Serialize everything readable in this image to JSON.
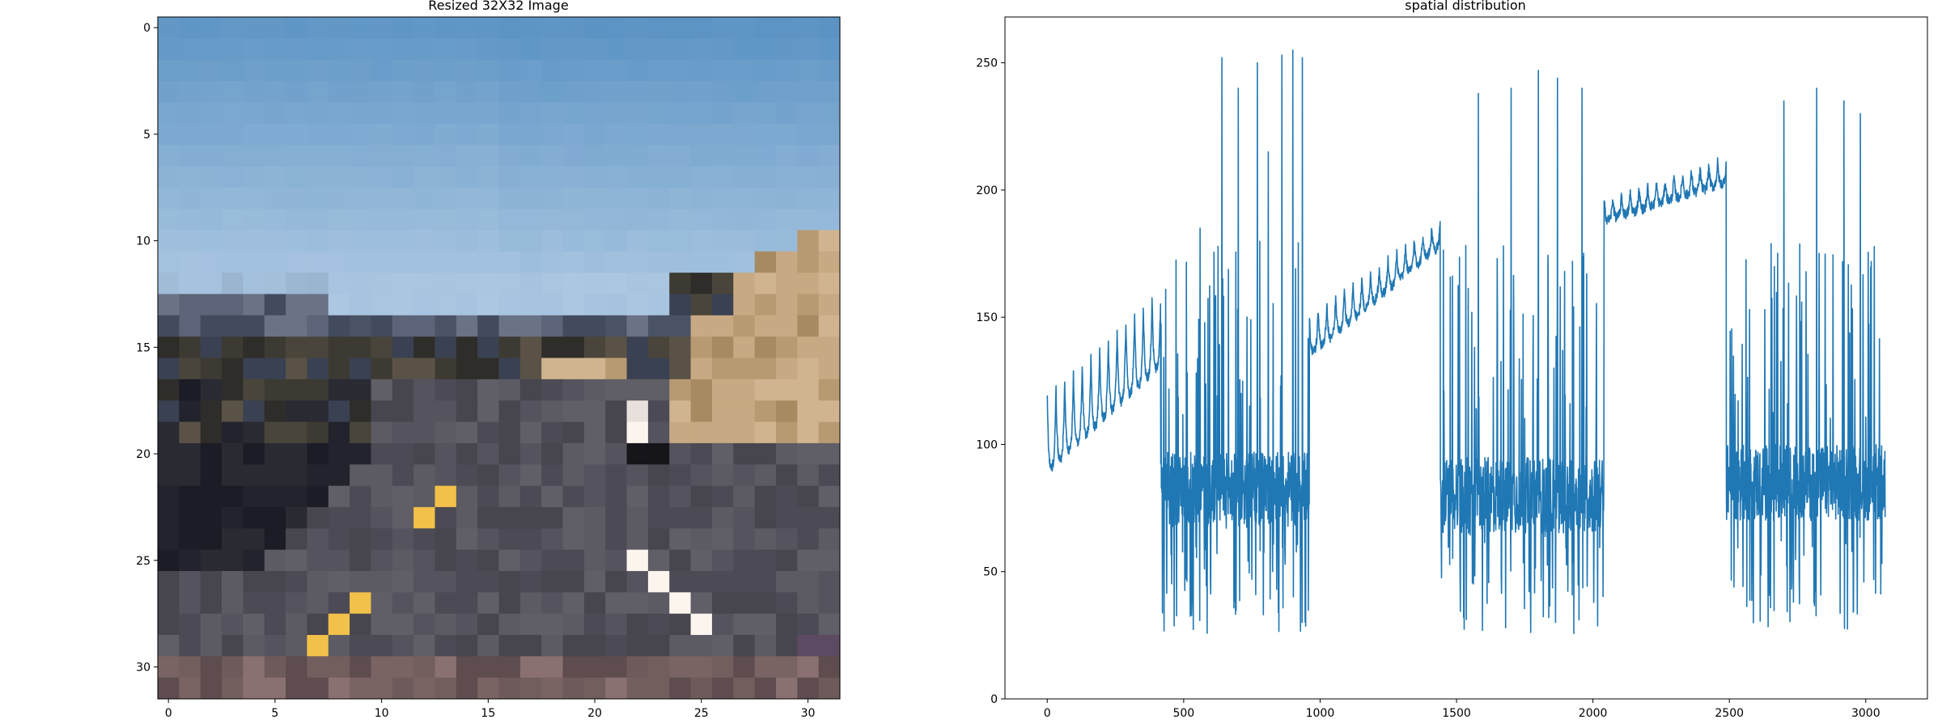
{
  "charts": [
    {
      "title": "Resized 32X32 Image",
      "chart_data": {
        "type": "heatmap",
        "title": "Resized 32X32 Image",
        "rows": 32,
        "cols": 32,
        "xlim": [
          -0.5,
          31.5
        ],
        "ylim": [
          31.5,
          -0.5
        ],
        "xticks": [
          0,
          5,
          10,
          15,
          20,
          25,
          30
        ],
        "yticks": [
          0,
          5,
          10,
          15,
          20,
          25,
          30
        ],
        "sky_top": "#5b93c4",
        "sky_horizon": "#a5c3df",
        "mountain_colors": [
          "#4a5366",
          "#5b6478",
          "#424b5e",
          "#6a7285"
        ],
        "hill_colors": [
          "#3d3a33",
          "#4a453b",
          "#2f2d29",
          "#5a5246",
          "#3a4152"
        ],
        "sand_colors": [
          "#b89a72",
          "#c7a983",
          "#a88a62",
          "#d0b490"
        ],
        "road_colors": [
          "#4b4a55",
          "#55545e",
          "#5c5a63",
          "#47464f",
          "#605e66"
        ],
        "dark_colors": [
          "#22232d",
          "#1b1c25",
          "#2a2a33"
        ],
        "gravel_colors": [
          "#6e5a5a",
          "#7a6363",
          "#5e4c4e",
          "#8a7070",
          "#735e5e"
        ],
        "yellow_color": "#f2c14a",
        "white_color": "#fbf5ee",
        "yellow_dashes": [
          [
            22,
            13
          ],
          [
            23,
            12
          ],
          [
            27,
            9
          ],
          [
            28,
            8
          ],
          [
            29,
            7
          ]
        ],
        "white_dashes": [
          [
            25,
            22
          ],
          [
            26,
            23
          ],
          [
            27,
            24
          ],
          [
            28,
            25
          ]
        ]
      }
    },
    {
      "title": "spatial distribution",
      "chart_data": {
        "type": "line",
        "title": "spatial distribution",
        "xlabel": "",
        "ylabel": "",
        "xlim": [
          -155,
          3226
        ],
        "ylim": [
          0,
          268
        ],
        "xticks": [
          0,
          500,
          1000,
          1500,
          2000,
          2500,
          3000
        ],
        "yticks": [
          0,
          50,
          100,
          150,
          200,
          250
        ],
        "line_color": "#1f77b4",
        "series": [
          {
            "sample_count": 3072,
            "segments": [
              {
                "x_start": 0,
                "x_end": 415,
                "low_start": 80,
                "low_end": 122,
                "high_start": 118,
                "high_end": 160,
                "period": 32
              },
              {
                "x_start": 416,
                "x_end": 960,
                "base": 82,
                "spread": 30,
                "spikes": [
                  [
                    560,
                    185
                  ],
                  [
                    640,
                    252
                  ],
                  [
                    700,
                    240
                  ],
                  [
                    770,
                    250
                  ],
                  [
                    810,
                    215
                  ],
                  [
                    860,
                    253
                  ],
                  [
                    900,
                    255
                  ],
                  [
                    935,
                    252
                  ]
                ]
              },
              {
                "x_start": 961,
                "x_end": 1440,
                "low_start": 130,
                "low_end": 175,
                "high_start": 150,
                "high_end": 188,
                "period": 32
              },
              {
                "x_start": 1441,
                "x_end": 2040,
                "base": 80,
                "spread": 30,
                "spikes": [
                  [
                    1580,
                    238
                  ],
                  [
                    1700,
                    240
                  ],
                  [
                    1800,
                    247
                  ],
                  [
                    1870,
                    244
                  ],
                  [
                    1960,
                    240
                  ]
                ]
              },
              {
                "x_start": 2041,
                "x_end": 2488,
                "low_start": 185,
                "low_end": 200,
                "high_start": 196,
                "high_end": 212,
                "period": 32
              },
              {
                "x_start": 2489,
                "x_end": 3071,
                "base": 85,
                "spread": 30,
                "spikes": [
                  [
                    2700,
                    235
                  ],
                  [
                    2820,
                    240
                  ],
                  [
                    2920,
                    235
                  ],
                  [
                    2980,
                    230
                  ]
                ]
              }
            ],
            "annotated_extremes": {
              "max": 255,
              "min": 12
            }
          }
        ]
      }
    }
  ]
}
